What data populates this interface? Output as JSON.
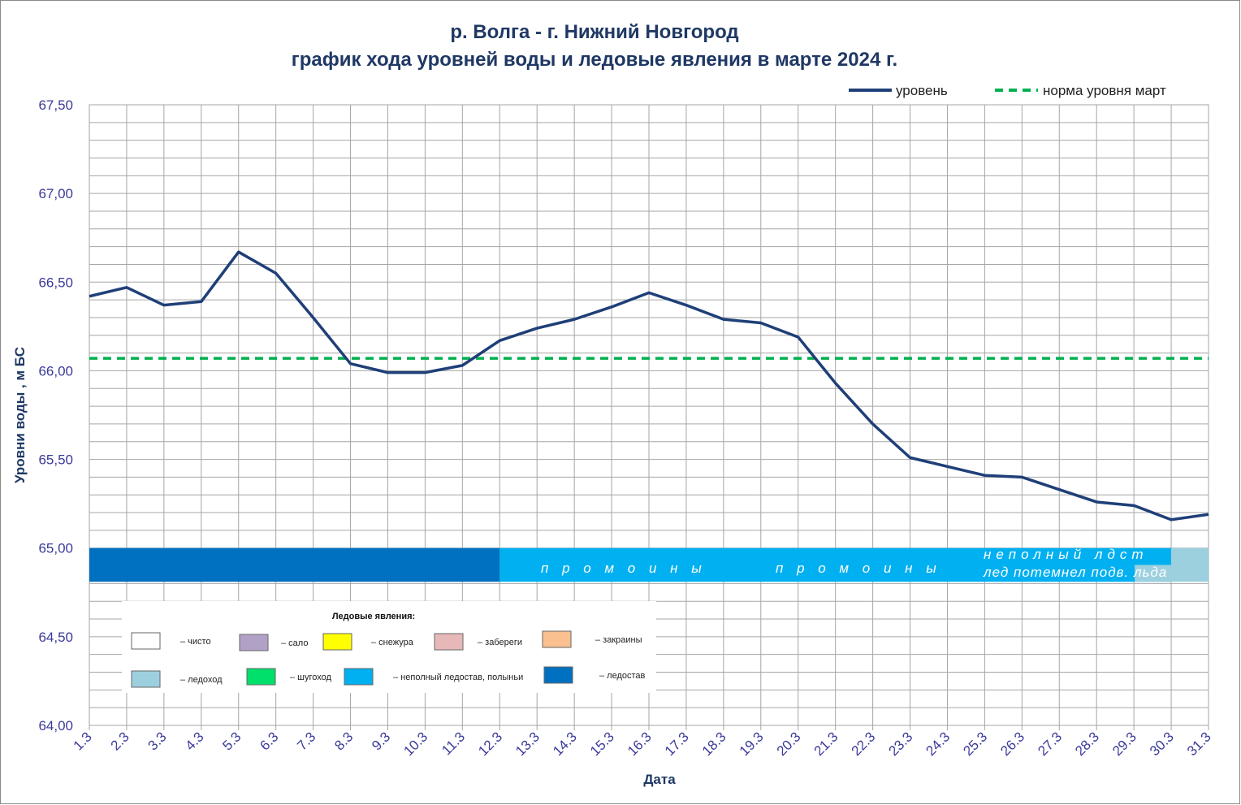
{
  "chart_data": {
    "type": "line",
    "title": "р. Волга - г. Нижний Новгород",
    "subtitle": "график хода уровней воды и ледовые явления в марте 2024 г.",
    "xlabel": "Дата",
    "ylabel": "Уровни воды , м БС",
    "ylim": [
      64.0,
      67.5
    ],
    "y_ticks": [
      "64,00",
      "64,50",
      "65,00",
      "65,50",
      "66,00",
      "66,50",
      "67,00",
      "67,50"
    ],
    "categories": [
      "1.3",
      "2.3",
      "3.3",
      "4.3",
      "5.3",
      "6.3",
      "7.3",
      "8.3",
      "9.3",
      "10.3",
      "11.3",
      "12.3",
      "13.3",
      "14.3",
      "15.3",
      "16.3",
      "17.3",
      "18.3",
      "19.3",
      "20.3",
      "21.3",
      "22.3",
      "23.3",
      "24.3",
      "25.3",
      "26.3",
      "27.3",
      "28.3",
      "29.3",
      "30.3",
      "31.3"
    ],
    "series": [
      {
        "name": "уровень",
        "color": "#1f3f78",
        "values": [
          66.42,
          66.47,
          66.37,
          66.39,
          66.67,
          66.55,
          66.3,
          66.04,
          65.99,
          65.99,
          66.03,
          66.17,
          66.24,
          66.29,
          66.36,
          66.44,
          66.37,
          66.29,
          66.27,
          66.19,
          65.93,
          65.7,
          65.51,
          65.46,
          65.41,
          65.4,
          65.33,
          65.26,
          65.24,
          65.16,
          65.19
        ]
      },
      {
        "name": "норма уровня март",
        "color": "#00b050",
        "dashed": true,
        "value": 66.07
      }
    ],
    "legend": "top-right",
    "grid": true,
    "ice_bands": [
      {
        "from": "1.3",
        "to": "12.3",
        "color": "#0070c0",
        "type": "ледостав"
      },
      {
        "from": "12.3",
        "to": "30.3",
        "color": "#00b0f0",
        "type": "неполный ледостав, полыньи"
      },
      {
        "from": "30.3",
        "to": "31.3",
        "color": "#9dd0df",
        "type": "ледоход"
      }
    ],
    "ice_texts": [
      "п р о м о и н ы",
      "п р о м о и н ы",
      "неполный лдст",
      "лед потемнел подв. льда"
    ],
    "ice_legend": {
      "title": "Ледовые явления:",
      "items": [
        {
          "label": "– чисто",
          "color": "#ffffff"
        },
        {
          "label": "– сало",
          "color": "#b2a1c7"
        },
        {
          "label": "– снежура",
          "color": "#ffff00"
        },
        {
          "label": "– забереги",
          "color": "#e6b9b8"
        },
        {
          "label": "– закраины",
          "color": "#fac090"
        },
        {
          "label": "– ледоход",
          "color": "#9dd0df"
        },
        {
          "label": "– шугоход",
          "color": "#00e06a"
        },
        {
          "label": "– неполный ледостав, полыньи",
          "color": "#00b0f0"
        },
        {
          "label": "– ледостав",
          "color": "#0070c0"
        }
      ]
    }
  }
}
